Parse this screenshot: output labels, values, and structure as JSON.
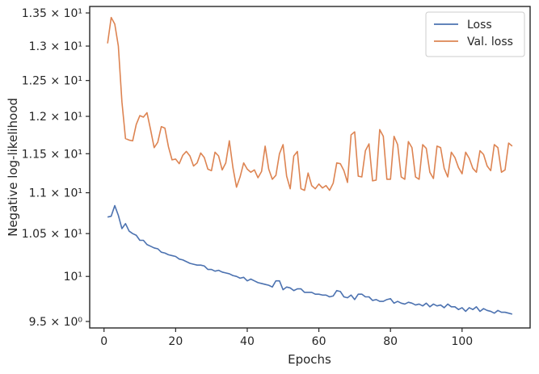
{
  "chart_data": {
    "type": "line",
    "xlabel": "Epochs",
    "ylabel": "Negative log-likelihood",
    "yscale": "log",
    "xlim": [
      -4,
      119
    ],
    "ylim": [
      9.43,
      13.6
    ],
    "grid": false,
    "legend_position": "top-right",
    "x_ticks": [
      {
        "value": 0,
        "label": "0"
      },
      {
        "value": 20,
        "label": "20"
      },
      {
        "value": 40,
        "label": "40"
      },
      {
        "value": 60,
        "label": "60"
      },
      {
        "value": 80,
        "label": "80"
      },
      {
        "value": 100,
        "label": "100"
      }
    ],
    "y_ticks": [
      {
        "value": 9.5,
        "label": "9.5 × 10⁰"
      },
      {
        "value": 10.0,
        "label": "10¹"
      },
      {
        "value": 10.5,
        "label": "1.05 × 10¹"
      },
      {
        "value": 11.0,
        "label": "1.1 × 10¹"
      },
      {
        "value": 11.5,
        "label": "1.15 × 10¹"
      },
      {
        "value": 12.0,
        "label": "1.2 × 10¹"
      },
      {
        "value": 12.5,
        "label": "1.25 × 10¹"
      },
      {
        "value": 13.0,
        "label": "1.3 × 10¹"
      },
      {
        "value": 13.5,
        "label": "1.35 × 10¹"
      }
    ],
    "x": [
      1,
      2,
      3,
      4,
      5,
      6,
      7,
      8,
      9,
      10,
      11,
      12,
      13,
      14,
      15,
      16,
      17,
      18,
      19,
      20,
      21,
      22,
      23,
      24,
      25,
      26,
      27,
      28,
      29,
      30,
      31,
      32,
      33,
      34,
      35,
      36,
      37,
      38,
      39,
      40,
      41,
      42,
      43,
      44,
      45,
      46,
      47,
      48,
      49,
      50,
      51,
      52,
      53,
      54,
      55,
      56,
      57,
      58,
      59,
      60,
      61,
      62,
      63,
      64,
      65,
      66,
      67,
      68,
      69,
      70,
      71,
      72,
      73,
      74,
      75,
      76,
      77,
      78,
      79,
      80,
      81,
      82,
      83,
      84,
      85,
      86,
      87,
      88,
      89,
      90,
      91,
      92,
      93,
      94,
      95,
      96,
      97,
      98,
      99,
      100,
      101,
      102,
      103,
      104,
      105,
      106,
      107,
      108,
      109,
      110,
      111,
      112,
      113,
      114
    ],
    "series": [
      {
        "name": "Loss",
        "color": "#4c72b0",
        "values": [
          10.7,
          10.71,
          10.84,
          10.72,
          10.56,
          10.62,
          10.53,
          10.5,
          10.48,
          10.42,
          10.42,
          10.37,
          10.35,
          10.33,
          10.32,
          10.28,
          10.27,
          10.25,
          10.24,
          10.23,
          10.2,
          10.19,
          10.17,
          10.15,
          10.14,
          10.13,
          10.13,
          10.12,
          10.08,
          10.08,
          10.06,
          10.07,
          10.05,
          10.04,
          10.03,
          10.01,
          10.0,
          9.98,
          9.99,
          9.95,
          9.97,
          9.95,
          9.93,
          9.92,
          9.91,
          9.9,
          9.88,
          9.95,
          9.95,
          9.85,
          9.88,
          9.87,
          9.84,
          9.86,
          9.86,
          9.82,
          9.82,
          9.82,
          9.8,
          9.8,
          9.79,
          9.79,
          9.77,
          9.78,
          9.84,
          9.83,
          9.77,
          9.76,
          9.79,
          9.74,
          9.8,
          9.8,
          9.77,
          9.77,
          9.73,
          9.74,
          9.72,
          9.72,
          9.74,
          9.75,
          9.7,
          9.72,
          9.7,
          9.69,
          9.71,
          9.7,
          9.68,
          9.69,
          9.67,
          9.7,
          9.66,
          9.69,
          9.67,
          9.68,
          9.65,
          9.69,
          9.66,
          9.66,
          9.63,
          9.65,
          9.61,
          9.65,
          9.63,
          9.66,
          9.61,
          9.64,
          9.62,
          9.61,
          9.59,
          9.62,
          9.6,
          9.6,
          9.59,
          9.58
        ]
      },
      {
        "name": "Val. loss",
        "color": "#dd8452",
        "values": [
          13.04,
          13.43,
          13.33,
          13.0,
          12.2,
          11.7,
          11.68,
          11.67,
          11.89,
          12.01,
          11.99,
          12.05,
          11.82,
          11.58,
          11.65,
          11.86,
          11.84,
          11.59,
          11.42,
          11.43,
          11.37,
          11.48,
          11.53,
          11.47,
          11.34,
          11.38,
          11.51,
          11.45,
          11.3,
          11.28,
          11.52,
          11.47,
          11.29,
          11.38,
          11.67,
          11.32,
          11.07,
          11.2,
          11.38,
          11.3,
          11.26,
          11.29,
          11.19,
          11.27,
          11.6,
          11.3,
          11.17,
          11.22,
          11.5,
          11.62,
          11.21,
          11.05,
          11.47,
          11.53,
          11.05,
          11.03,
          11.25,
          11.09,
          11.05,
          11.11,
          11.06,
          11.09,
          11.03,
          11.12,
          11.38,
          11.37,
          11.28,
          11.13,
          11.75,
          11.79,
          11.21,
          11.2,
          11.54,
          11.63,
          11.15,
          11.16,
          11.82,
          11.73,
          11.17,
          11.17,
          11.73,
          11.62,
          11.2,
          11.17,
          11.66,
          11.58,
          11.2,
          11.17,
          11.62,
          11.57,
          11.26,
          11.18,
          11.6,
          11.58,
          11.31,
          11.2,
          11.52,
          11.45,
          11.32,
          11.24,
          11.52,
          11.44,
          11.31,
          11.26,
          11.54,
          11.49,
          11.34,
          11.28,
          11.62,
          11.58,
          11.26,
          11.29,
          11.64,
          11.6
        ]
      }
    ]
  }
}
